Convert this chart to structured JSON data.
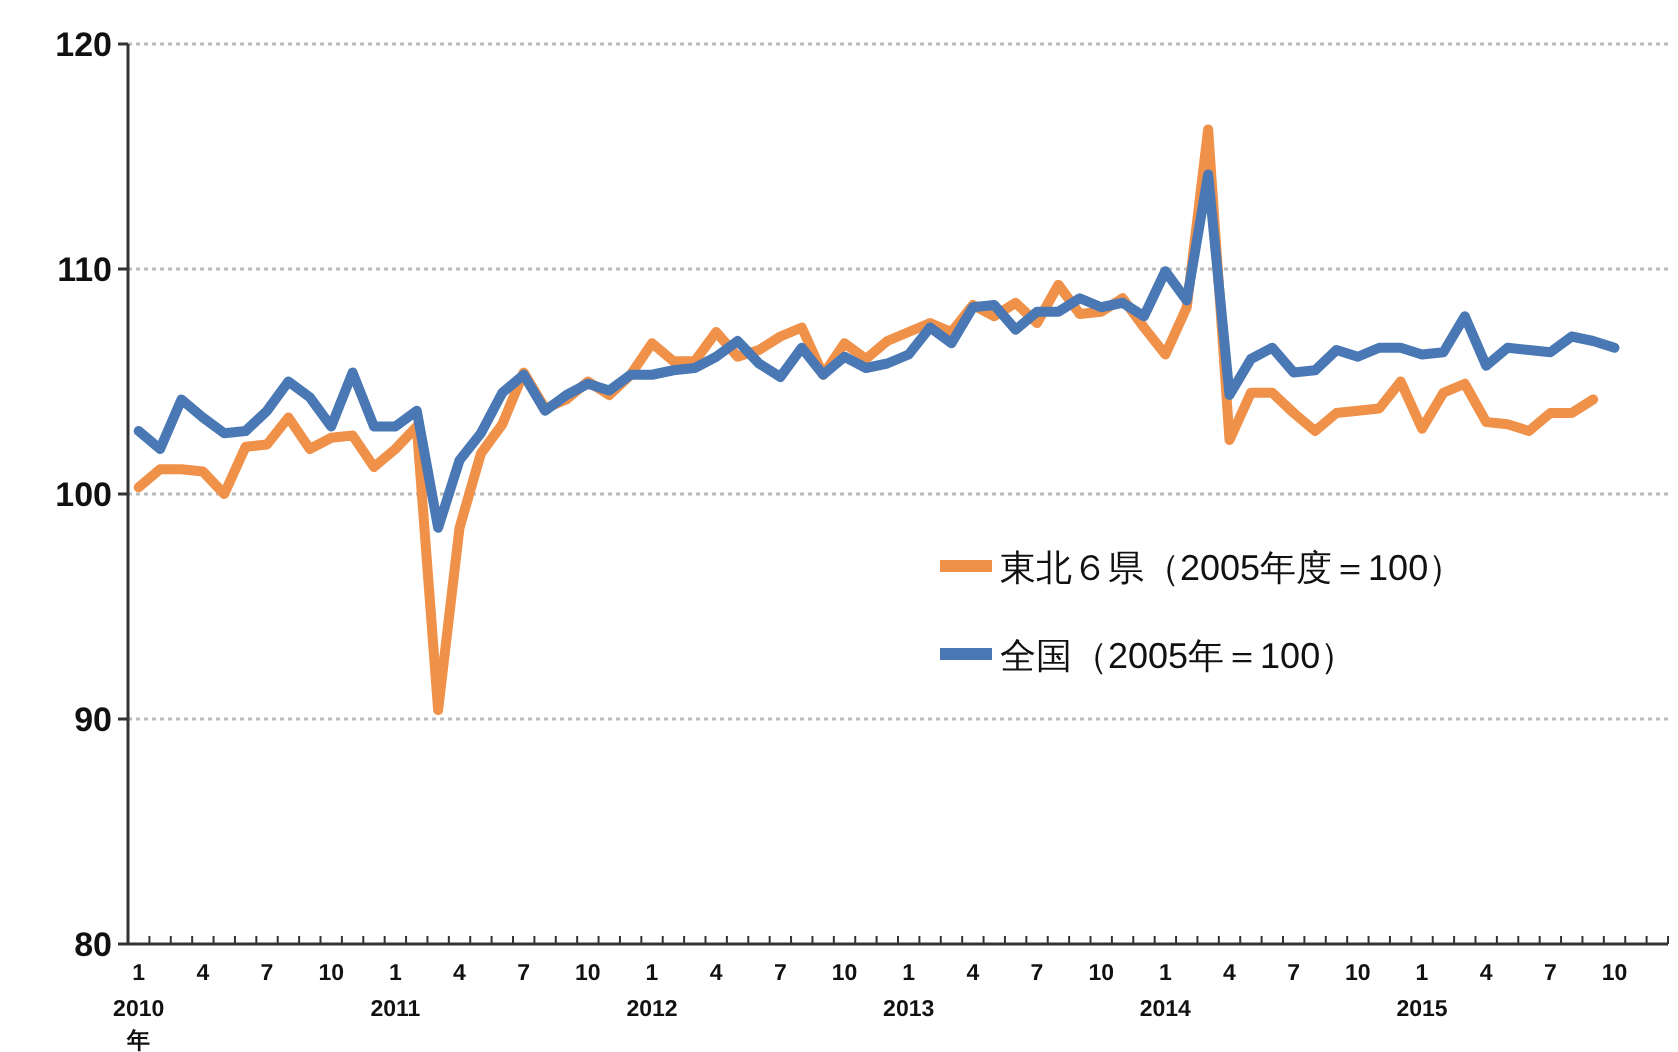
{
  "chart_data": {
    "type": "line",
    "categories": [
      "1",
      null,
      null,
      "4",
      null,
      null,
      "7",
      null,
      null,
      "10",
      null,
      null,
      "1",
      null,
      null,
      "4",
      null,
      null,
      "7",
      null,
      null,
      "10",
      null,
      null,
      "1",
      null,
      null,
      "4",
      null,
      null,
      "7",
      null,
      null,
      "10",
      null,
      null,
      "1",
      null,
      null,
      "4",
      null,
      null,
      "7",
      null,
      null,
      "10",
      null,
      null,
      "1",
      null,
      null,
      "4",
      null,
      null,
      "7",
      null,
      null,
      "10",
      null,
      null,
      "1",
      null,
      null,
      "4",
      null,
      null,
      "7",
      null,
      null,
      "10",
      null,
      null
    ],
    "annotations": [
      "2010",
      "2011",
      "2012",
      "2013",
      "2014",
      "2015",
      "年"
    ],
    "series": [
      {
        "name": "東北６県（2005年度＝100）",
        "color": "#f0914a",
        "values": [
          100.3,
          101.1,
          101.1,
          101.0,
          100.0,
          102.1,
          102.2,
          103.4,
          102.0,
          102.5,
          102.6,
          101.2,
          102.0,
          103.0,
          90.4,
          98.5,
          101.8,
          103.1,
          105.4,
          103.8,
          104.2,
          105.0,
          104.4,
          105.3,
          106.7,
          105.9,
          105.9,
          107.2,
          106.1,
          106.4,
          107.0,
          107.4,
          105.3,
          106.7,
          106.0,
          106.8,
          107.2,
          107.6,
          107.2,
          108.4,
          107.9,
          108.5,
          107.6,
          109.3,
          108.0,
          108.1,
          108.7,
          107.4,
          106.2,
          108.3,
          116.2,
          102.4,
          104.5,
          104.5,
          103.6,
          102.8,
          103.6,
          103.7,
          103.8,
          105.0,
          102.9,
          104.5,
          104.9,
          103.2,
          103.1,
          102.8,
          103.6,
          103.6,
          104.2,
          null,
          null,
          null
        ]
      },
      {
        "name": "全国（2005年＝100）",
        "color": "#4a78b4",
        "values": [
          102.8,
          102.0,
          104.2,
          103.4,
          102.7,
          102.8,
          103.7,
          105.0,
          104.3,
          103.0,
          105.4,
          103.0,
          103.0,
          103.7,
          98.5,
          101.5,
          102.7,
          104.5,
          105.3,
          103.7,
          104.4,
          104.9,
          104.6,
          105.3,
          105.3,
          105.5,
          105.6,
          106.1,
          106.8,
          105.8,
          105.2,
          106.5,
          105.3,
          106.1,
          105.6,
          105.8,
          106.2,
          107.4,
          106.7,
          108.3,
          108.4,
          107.3,
          108.1,
          108.1,
          108.7,
          108.3,
          108.5,
          107.9,
          109.9,
          108.6,
          114.2,
          104.4,
          106.0,
          106.5,
          105.4,
          105.5,
          106.4,
          106.1,
          106.5,
          106.5,
          106.2,
          106.3,
          107.9,
          105.7,
          106.5,
          106.4,
          106.3,
          107.0,
          106.8,
          106.5,
          null,
          null
        ]
      }
    ],
    "ylim": [
      80,
      120
    ],
    "yticks": [
      80,
      90,
      100,
      110,
      120
    ],
    "grid": "y",
    "legend": "right",
    "marker": "none",
    "line_style": "solid"
  }
}
